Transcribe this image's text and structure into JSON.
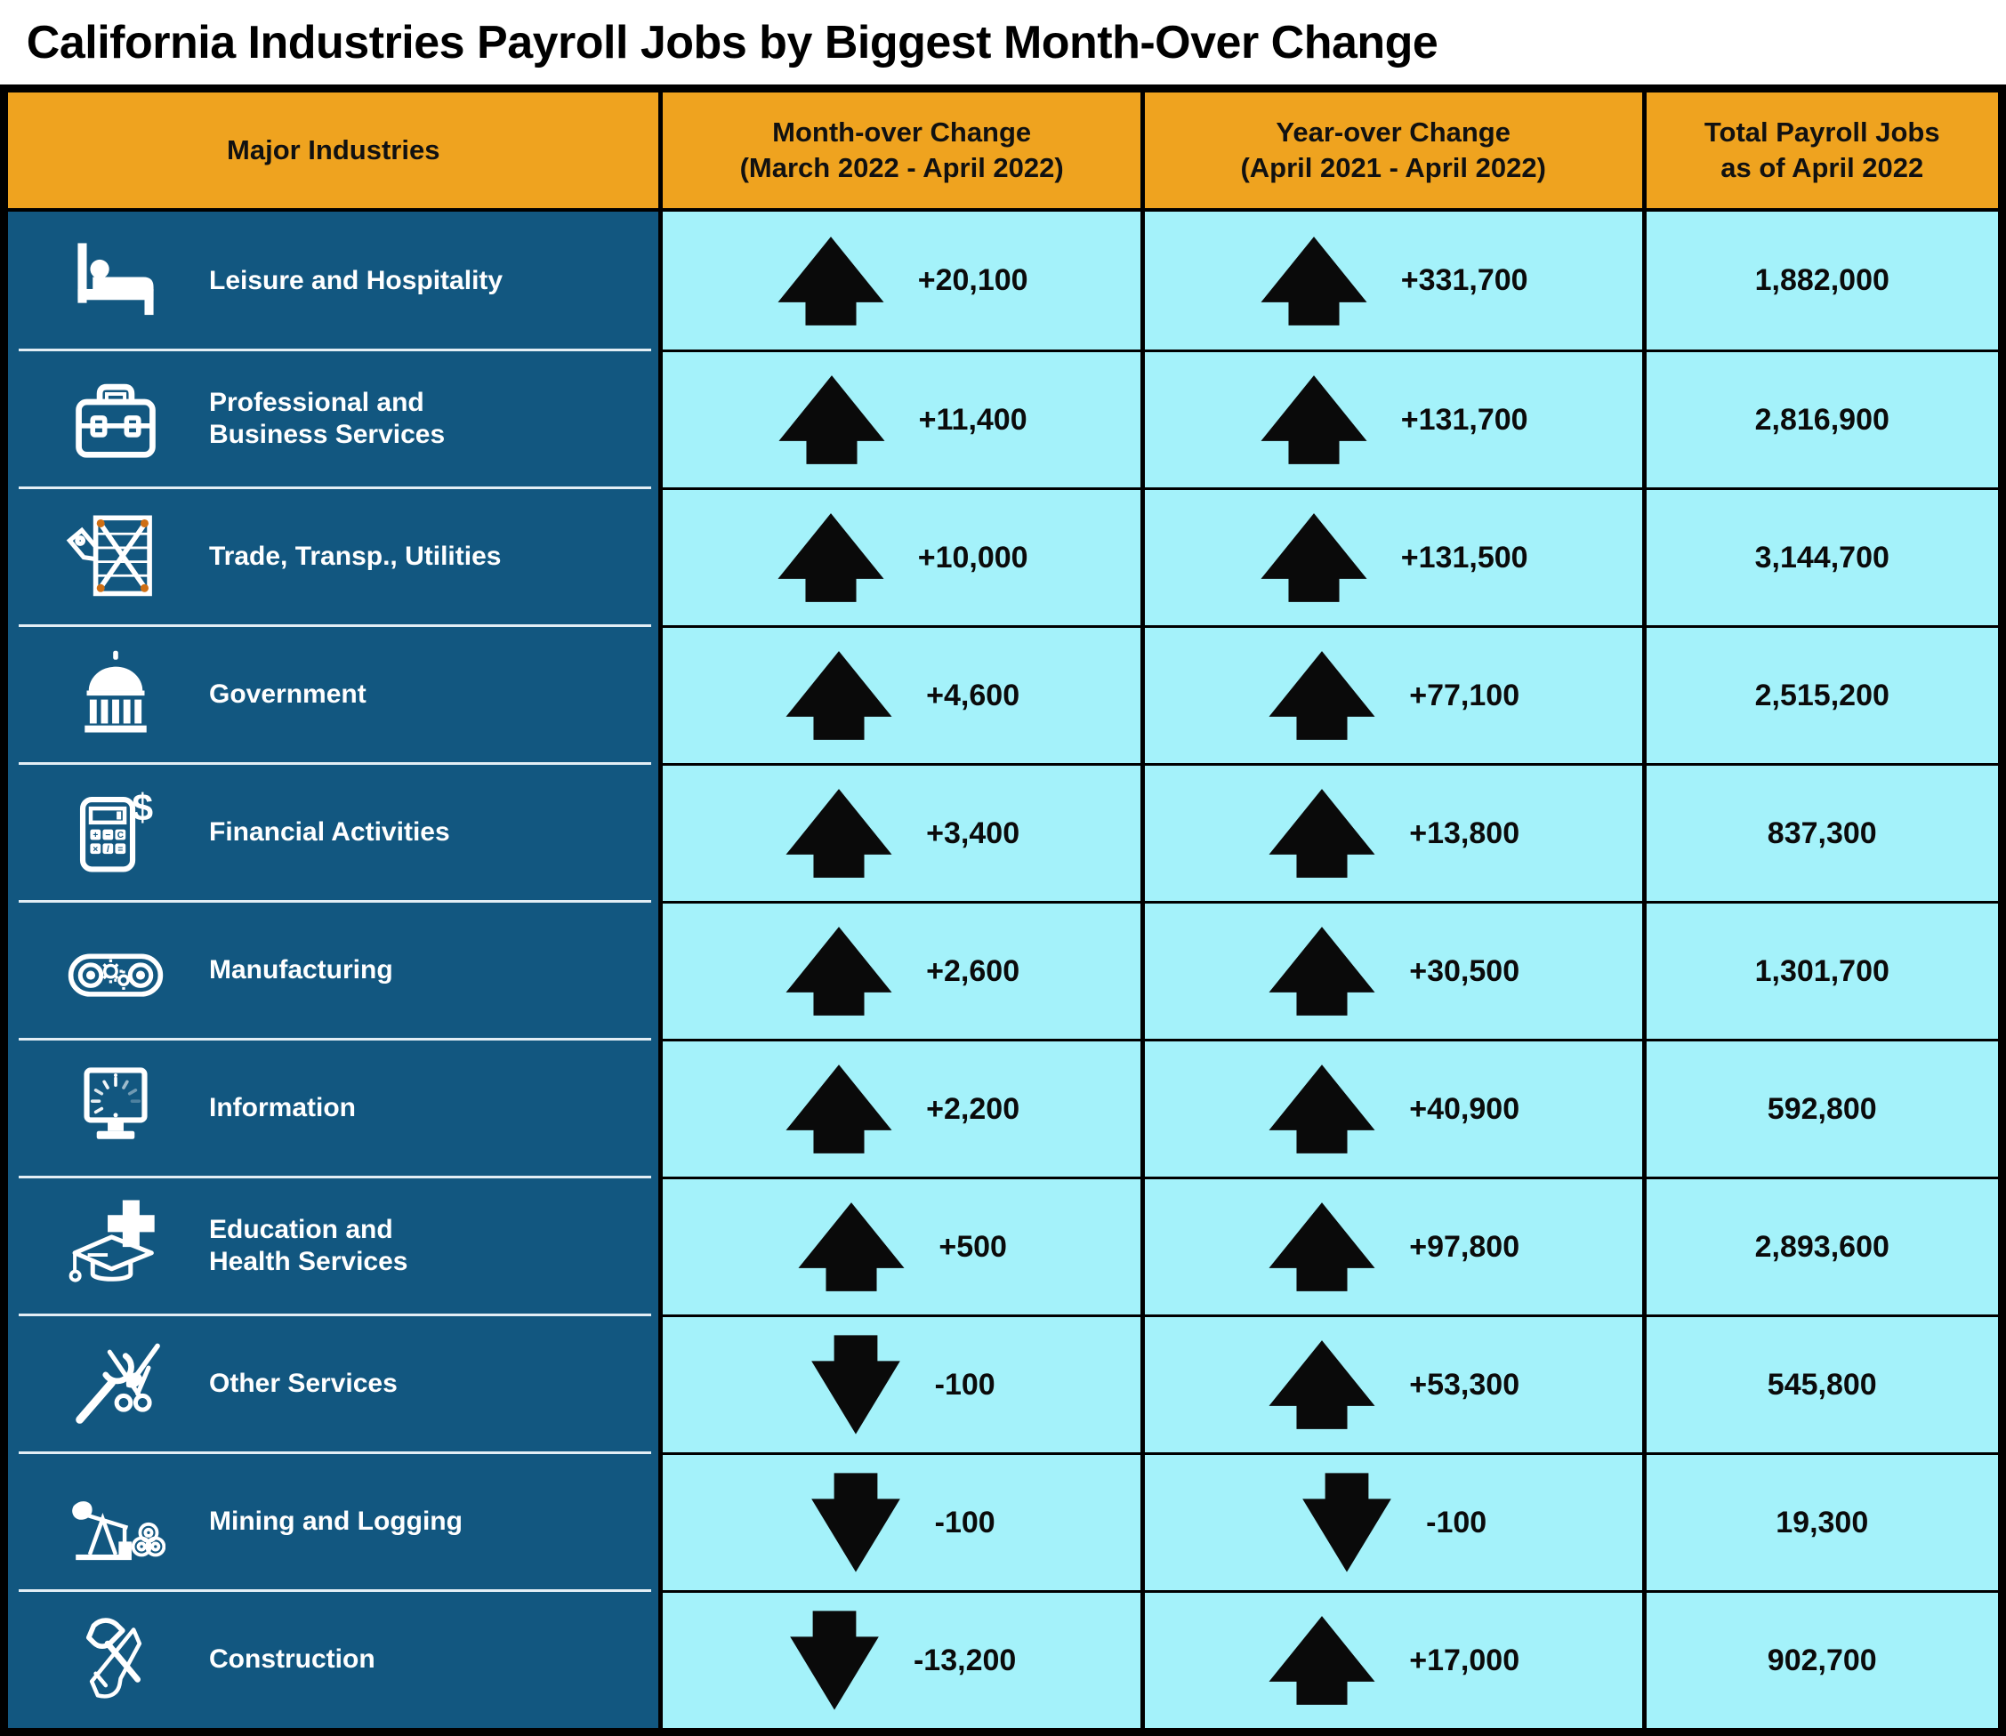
{
  "title": "California Industries Payroll Jobs by Biggest Month-Over Change",
  "colors": {
    "header_bg": "#EFA31F",
    "header_text": "#111111",
    "industry_bg": "#125780",
    "industry_text": "#FFFFFF",
    "cell_bg": "#A4F2FA",
    "value_text": "#0B0B0B",
    "border": "#000000",
    "arrow": "#0A0A0A",
    "crate_dot": "#CF6F14",
    "separator": "#E3EEF5"
  },
  "table": {
    "headers": {
      "industries": "Major Industries",
      "month": [
        "Month-over Change",
        "(March 2022 - April 2022)"
      ],
      "year": [
        "Year-over Change",
        "(April 2021 - April 2022)"
      ],
      "total": [
        "Total Payroll Jobs",
        "as of April 2022"
      ]
    },
    "rows": [
      {
        "icon": "bed-icon",
        "name_lines": [
          "Leisure and Hospitality"
        ],
        "month": {
          "dir": "up",
          "value": "+20,100"
        },
        "year": {
          "dir": "up",
          "value": "+331,700"
        },
        "total": "1,882,000"
      },
      {
        "icon": "toolbox-icon",
        "name_lines": [
          "Professional and",
          "Business Services"
        ],
        "month": {
          "dir": "up",
          "value": "+11,400"
        },
        "year": {
          "dir": "up",
          "value": "+131,700"
        },
        "total": "2,816,900"
      },
      {
        "icon": "crate-tag-icon",
        "name_lines": [
          "Trade, Transp., Utilities"
        ],
        "month": {
          "dir": "up",
          "value": "+10,000"
        },
        "year": {
          "dir": "up",
          "value": "+131,500"
        },
        "total": "3,144,700"
      },
      {
        "icon": "government-building-icon",
        "name_lines": [
          "Government"
        ],
        "month": {
          "dir": "up",
          "value": "+4,600"
        },
        "year": {
          "dir": "up",
          "value": "+77,100"
        },
        "total": "2,515,200"
      },
      {
        "icon": "calculator-dollar-icon",
        "name_lines": [
          "Financial Activities"
        ],
        "month": {
          "dir": "up",
          "value": "+3,400"
        },
        "year": {
          "dir": "up",
          "value": "+13,800"
        },
        "total": "837,300"
      },
      {
        "icon": "conveyor-gears-icon",
        "name_lines": [
          "Manufacturing"
        ],
        "month": {
          "dir": "up",
          "value": "+2,600"
        },
        "year": {
          "dir": "up",
          "value": "+30,500"
        },
        "total": "1,301,700"
      },
      {
        "icon": "computer-monitor-icon",
        "name_lines": [
          "Information"
        ],
        "month": {
          "dir": "up",
          "value": "+2,200"
        },
        "year": {
          "dir": "up",
          "value": "+40,900"
        },
        "total": "592,800"
      },
      {
        "icon": "graduation-cap-cross-icon",
        "name_lines": [
          "Education and",
          "Health Services"
        ],
        "month": {
          "dir": "up",
          "value": "+500"
        },
        "year": {
          "dir": "up",
          "value": "+97,800"
        },
        "total": "2,893,600"
      },
      {
        "icon": "wrench-scissors-brush-icon",
        "name_lines": [
          "Other Services"
        ],
        "month": {
          "dir": "down",
          "value": "-100"
        },
        "year": {
          "dir": "up",
          "value": "+53,300"
        },
        "total": "545,800"
      },
      {
        "icon": "oil-pumpjack-logs-icon",
        "name_lines": [
          "Mining and Logging"
        ],
        "month": {
          "dir": "down",
          "value": "-100"
        },
        "year": {
          "dir": "down",
          "value": "-100"
        },
        "total": "19,300"
      },
      {
        "icon": "hammer-saw-icon",
        "name_lines": [
          "Construction"
        ],
        "month": {
          "dir": "down",
          "value": "-13,200"
        },
        "year": {
          "dir": "up",
          "value": "+17,000"
        },
        "total": "902,700"
      }
    ]
  },
  "chart_data": {
    "type": "table",
    "title": "California Industries Payroll Jobs by Biggest Month-Over Change",
    "columns": [
      "Major Industries",
      "Month-over Change (March 2022 - April 2022)",
      "Year-over Change (April 2021 - April 2022)",
      "Total Payroll Jobs as of April 2022"
    ],
    "rows": [
      [
        "Leisure and Hospitality",
        20100,
        331700,
        1882000
      ],
      [
        "Professional and Business Services",
        11400,
        131700,
        2816900
      ],
      [
        "Trade, Transp., Utilities",
        10000,
        131500,
        3144700
      ],
      [
        "Government",
        4600,
        77100,
        2515200
      ],
      [
        "Financial Activities",
        3400,
        13800,
        837300
      ],
      [
        "Manufacturing",
        2600,
        30500,
        1301700
      ],
      [
        "Information",
        2200,
        40900,
        592800
      ],
      [
        "Education and Health Services",
        500,
        97800,
        2893600
      ],
      [
        "Other Services",
        -100,
        53300,
        545800
      ],
      [
        "Mining and Logging",
        -100,
        -100,
        19300
      ],
      [
        "Construction",
        -13200,
        17000,
        902700
      ]
    ]
  }
}
